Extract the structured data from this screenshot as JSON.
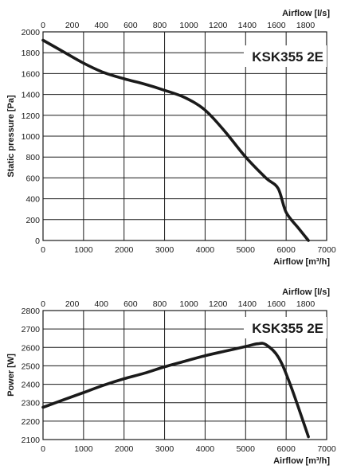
{
  "chart_data": [
    {
      "type": "line",
      "title": "KSK355 2E",
      "ylabel": "Static pressure [Pa]",
      "xlabel": "Airflow [m³/h]",
      "x2label": "Airflow [l/s]",
      "xlim": [
        0,
        7000
      ],
      "ylim": [
        0,
        2000
      ],
      "x2lim": [
        0,
        1944.4
      ],
      "x_ticks": [
        0,
        1000,
        2000,
        3000,
        4000,
        5000,
        6000,
        7000
      ],
      "x2_ticks": [
        0,
        200,
        400,
        600,
        800,
        1000,
        1200,
        1400,
        1600,
        1800
      ],
      "y_ticks": [
        0,
        200,
        400,
        600,
        800,
        1000,
        1200,
        1400,
        1600,
        1800,
        2000
      ],
      "grid": true,
      "series": [
        {
          "x": [
            0,
            500,
            1000,
            1500,
            2000,
            2500,
            3000,
            3500,
            4000,
            4500,
            5000,
            5500,
            5800,
            6000,
            6300,
            6550
          ],
          "y": [
            1920,
            1810,
            1700,
            1610,
            1550,
            1500,
            1440,
            1370,
            1250,
            1040,
            800,
            600,
            500,
            270,
            120,
            0
          ]
        }
      ]
    },
    {
      "type": "line",
      "title": "KSK355 2E",
      "ylabel": "Power [W]",
      "xlabel": "Airflow [m³/h]",
      "x2label": "Airflow [l/s]",
      "xlim": [
        0,
        7000
      ],
      "ylim": [
        2100,
        2800
      ],
      "x2lim": [
        0,
        1944.4
      ],
      "x_ticks": [
        0,
        1000,
        2000,
        3000,
        4000,
        5000,
        6000,
        7000
      ],
      "x2_ticks": [
        0,
        200,
        400,
        600,
        800,
        1000,
        1200,
        1400,
        1600,
        1800
      ],
      "y_ticks": [
        2100,
        2200,
        2300,
        2400,
        2500,
        2600,
        2700,
        2800
      ],
      "grid": true,
      "series": [
        {
          "x": [
            0,
            500,
            1000,
            1500,
            2000,
            2500,
            3000,
            3500,
            4000,
            4500,
            5000,
            5300,
            5500,
            5800,
            6100,
            6550
          ],
          "y": [
            2275,
            2315,
            2355,
            2395,
            2430,
            2460,
            2495,
            2525,
            2555,
            2580,
            2605,
            2620,
            2615,
            2550,
            2400,
            2115
          ]
        }
      ]
    }
  ]
}
